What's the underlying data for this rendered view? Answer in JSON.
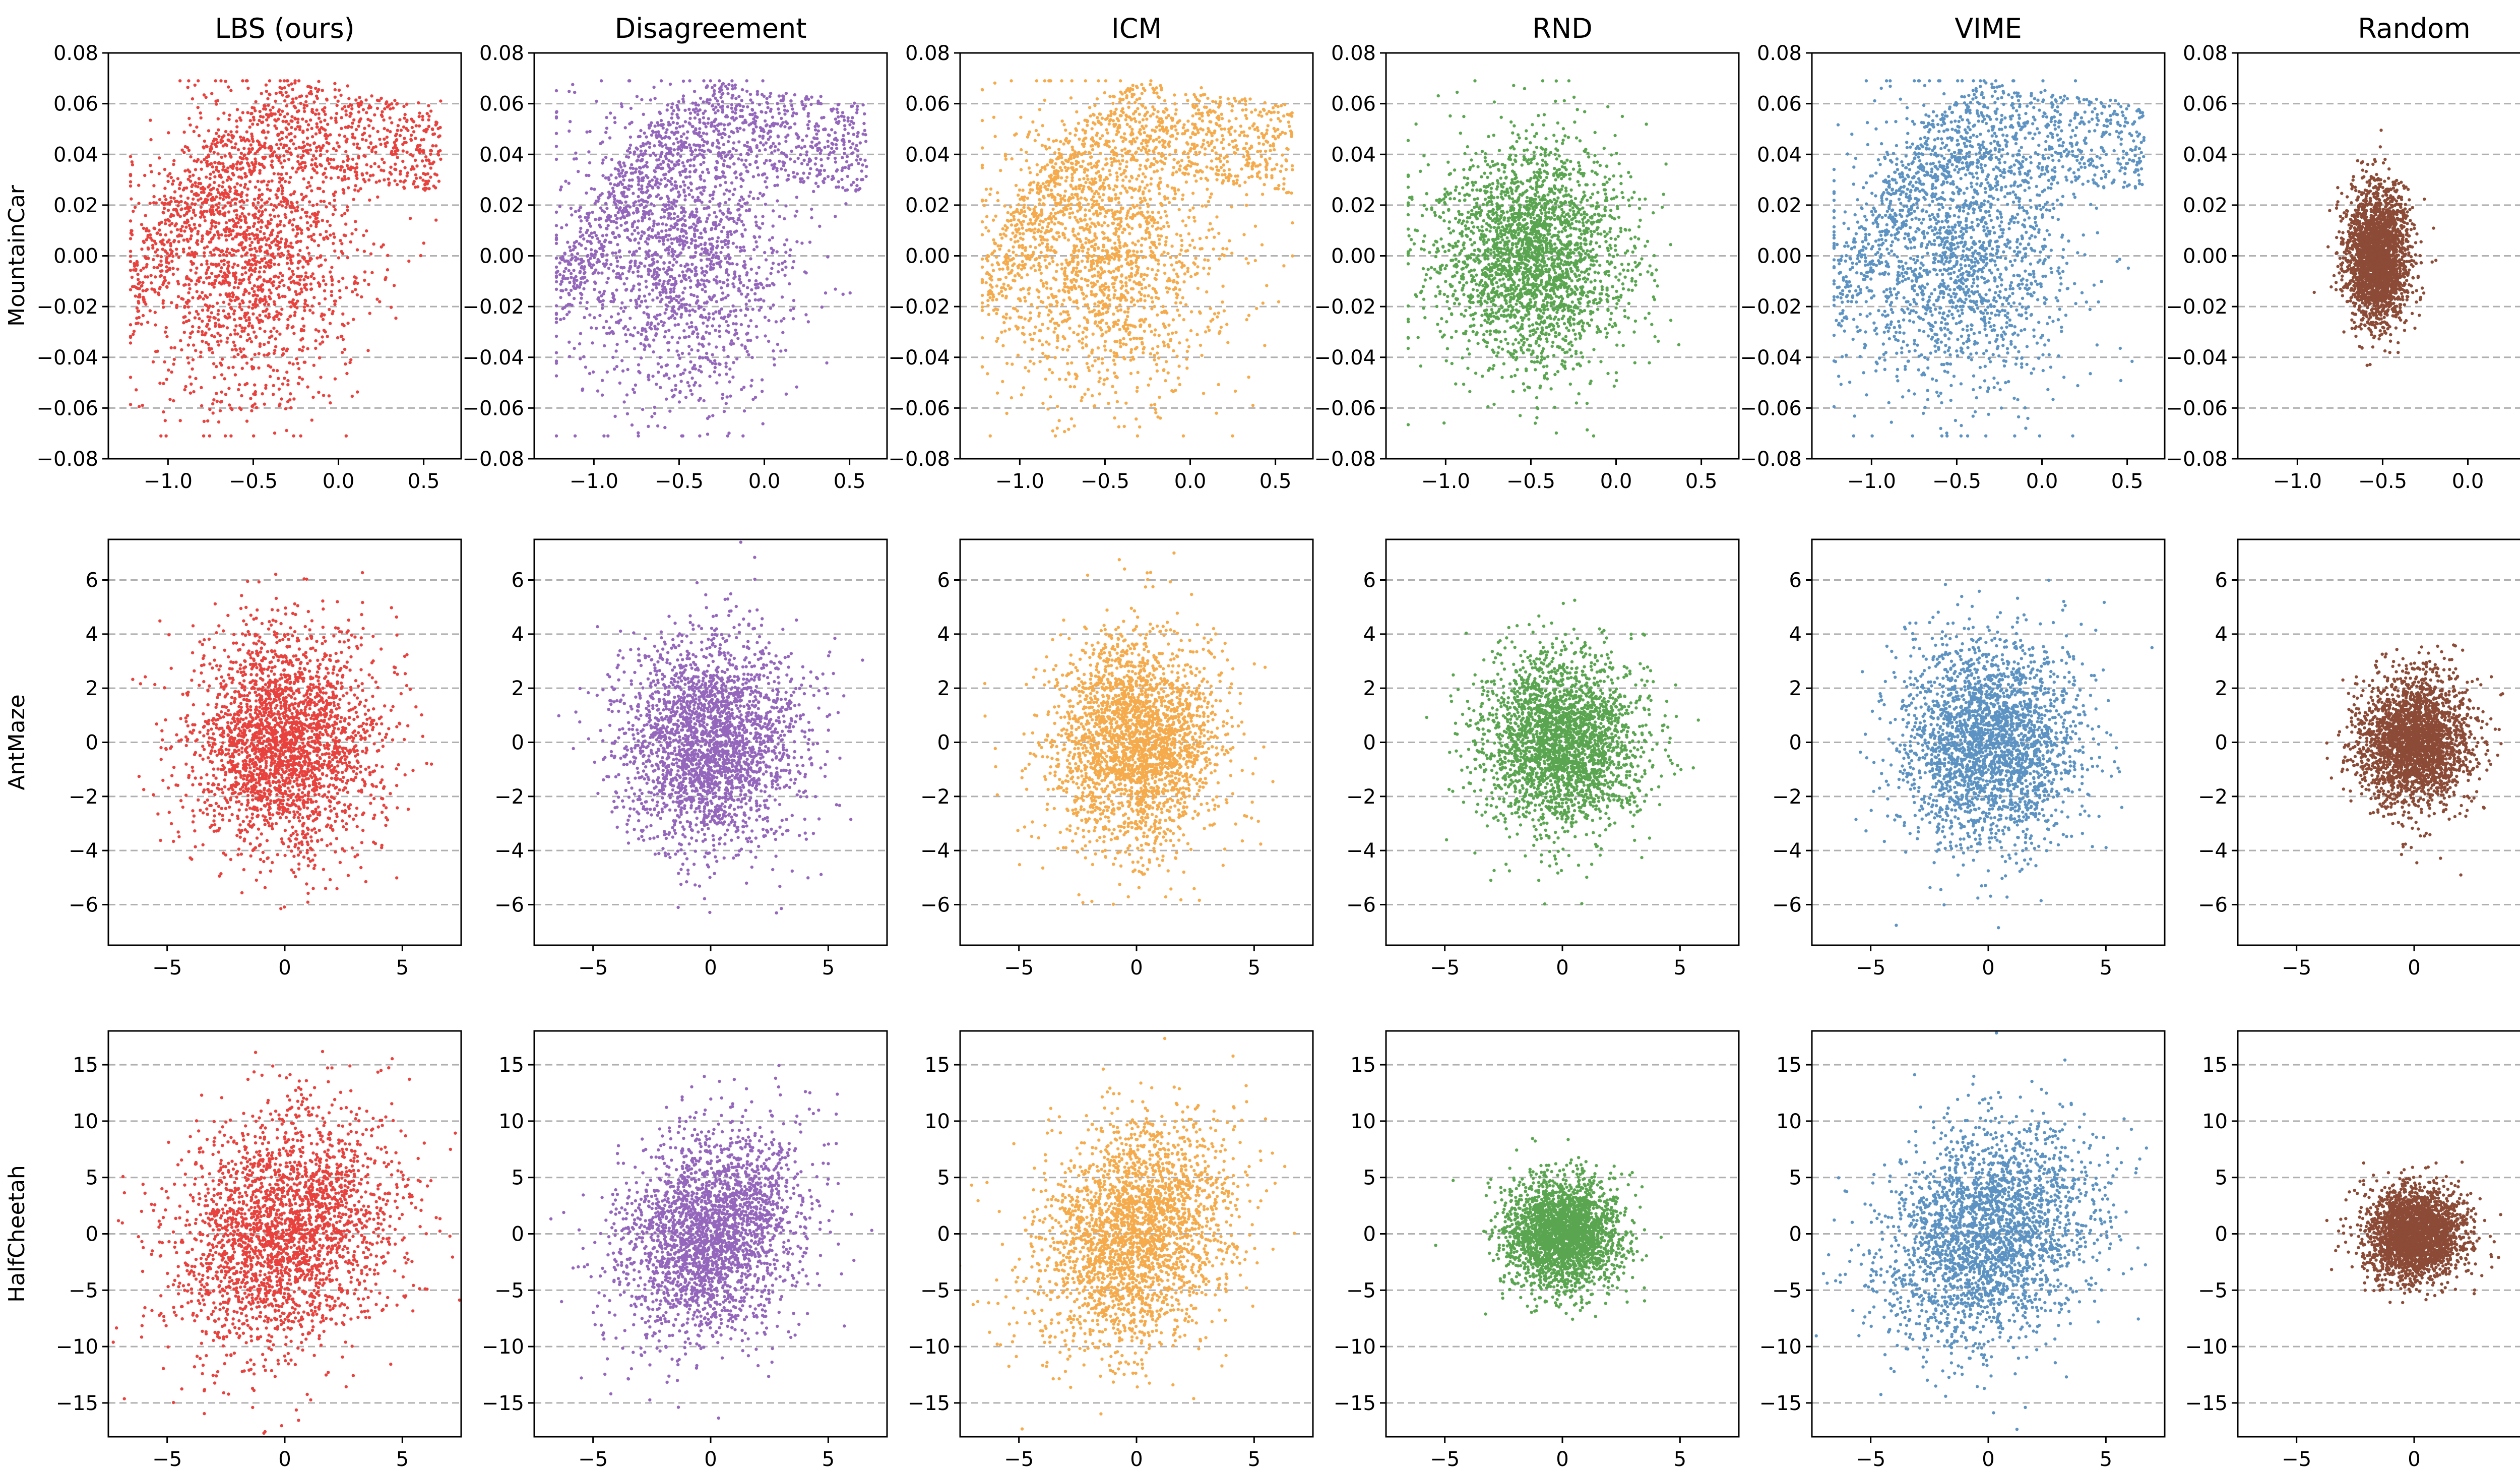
{
  "chart_data": {
    "type": "scatter",
    "grid": "y-dashed",
    "columns": [
      {
        "title": "LBS (ours)",
        "color": "#e8423e"
      },
      {
        "title": "Disagreement",
        "color": "#9467bd"
      },
      {
        "title": "ICM",
        "color": "#f5ab4c"
      },
      {
        "title": "RND",
        "color": "#5aa650"
      },
      {
        "title": "VIME",
        "color": "#5d93c2"
      },
      {
        "title": "Random",
        "color": "#8c4b36"
      }
    ],
    "rows": [
      {
        "label": "MountainCar",
        "xlim": [
          -1.35,
          0.72
        ],
        "ylim": [
          -0.08,
          0.08
        ],
        "xticks": [
          -1.0,
          -0.5,
          0.0,
          0.5
        ],
        "xtick_labels": [
          "−1.0",
          "−0.5",
          "0.0",
          "0.5"
        ],
        "yticks": [
          -0.08,
          -0.06,
          -0.04,
          -0.02,
          0.0,
          0.02,
          0.04,
          0.06,
          0.08
        ],
        "ytick_labels": [
          "−0.08",
          "−0.06",
          "−0.04",
          "−0.02",
          "0.00",
          "0.02",
          "0.04",
          "0.06",
          "0.08"
        ],
        "panels": [
          {
            "method": "LBS (ours)",
            "shape": "mc-swirl",
            "x_range": [
              -1.2,
              0.6
            ],
            "y_range": [
              -0.07,
              0.07
            ]
          },
          {
            "method": "Disagreement",
            "shape": "mc-swirl",
            "x_range": [
              -1.2,
              0.6
            ],
            "y_range": [
              -0.07,
              0.07
            ]
          },
          {
            "method": "ICM",
            "shape": "mc-swirl",
            "x_range": [
              -1.2,
              0.6
            ],
            "y_range": [
              -0.07,
              0.07
            ]
          },
          {
            "method": "RND",
            "shape": "mc-blob",
            "x_range": [
              -1.2,
              0.6
            ],
            "y_range": [
              -0.06,
              0.06
            ]
          },
          {
            "method": "VIME",
            "shape": "mc-swirl",
            "x_range": [
              -1.2,
              0.6
            ],
            "y_range": [
              -0.07,
              0.07
            ]
          },
          {
            "method": "Random",
            "shape": "blob",
            "center": [
              -0.53,
              0.0
            ],
            "spread": [
              0.09,
              0.013
            ]
          }
        ]
      },
      {
        "label": "AntMaze",
        "xlim": [
          -7.5,
          7.5
        ],
        "ylim": [
          -7.5,
          7.5
        ],
        "xticks": [
          -5,
          0,
          5
        ],
        "xtick_labels": [
          "−5",
          "0",
          "5"
        ],
        "yticks": [
          -6,
          -4,
          -2,
          0,
          2,
          4,
          6
        ],
        "ytick_labels": [
          "−6",
          "−4",
          "−2",
          "0",
          "2",
          "4",
          "6"
        ],
        "panels": [
          {
            "method": "LBS (ours)",
            "shape": "blob",
            "center": [
              0,
              0
            ],
            "spread": [
              2.0,
              2.0
            ]
          },
          {
            "method": "Disagreement",
            "shape": "blob",
            "center": [
              0,
              0
            ],
            "spread": [
              1.9,
              1.9
            ]
          },
          {
            "method": "ICM",
            "shape": "blob",
            "center": [
              0,
              0
            ],
            "spread": [
              1.8,
              1.9
            ]
          },
          {
            "method": "RND",
            "shape": "blob",
            "center": [
              0,
              0
            ],
            "spread": [
              1.7,
              1.6
            ]
          },
          {
            "method": "VIME",
            "shape": "blob",
            "center": [
              0,
              0
            ],
            "spread": [
              1.9,
              1.9
            ]
          },
          {
            "method": "Random",
            "shape": "blob",
            "center": [
              0,
              0
            ],
            "spread": [
              1.2,
              1.2
            ]
          }
        ]
      },
      {
        "label": "HalfCheetah",
        "xlim": [
          -7.5,
          7.5
        ],
        "ylim": [
          -18,
          18
        ],
        "xticks": [
          -5,
          0,
          5
        ],
        "xtick_labels": [
          "−5",
          "0",
          "5"
        ],
        "yticks": [
          -15,
          -10,
          -5,
          0,
          5,
          10,
          15
        ],
        "ytick_labels": [
          "−15",
          "−10",
          "−5",
          "0",
          "5",
          "10",
          "15"
        ],
        "panels": [
          {
            "method": "LBS (ours)",
            "shape": "slab",
            "center": [
              0,
              0
            ],
            "spread": [
              2.9,
              5.2
            ]
          },
          {
            "method": "Disagreement",
            "shape": "slab",
            "center": [
              0,
              0
            ],
            "spread": [
              2.4,
              4.6
            ]
          },
          {
            "method": "ICM",
            "shape": "slab",
            "center": [
              0,
              0
            ],
            "spread": [
              2.6,
              4.8
            ]
          },
          {
            "method": "RND",
            "shape": "blob",
            "center": [
              0,
              0
            ],
            "spread": [
              1.2,
              2.4
            ]
          },
          {
            "method": "VIME",
            "shape": "slab",
            "center": [
              0,
              0
            ],
            "spread": [
              2.8,
              4.7
            ]
          },
          {
            "method": "Random",
            "shape": "blob",
            "center": [
              0,
              0
            ],
            "spread": [
              1.0,
              2.0
            ]
          }
        ]
      }
    ]
  }
}
